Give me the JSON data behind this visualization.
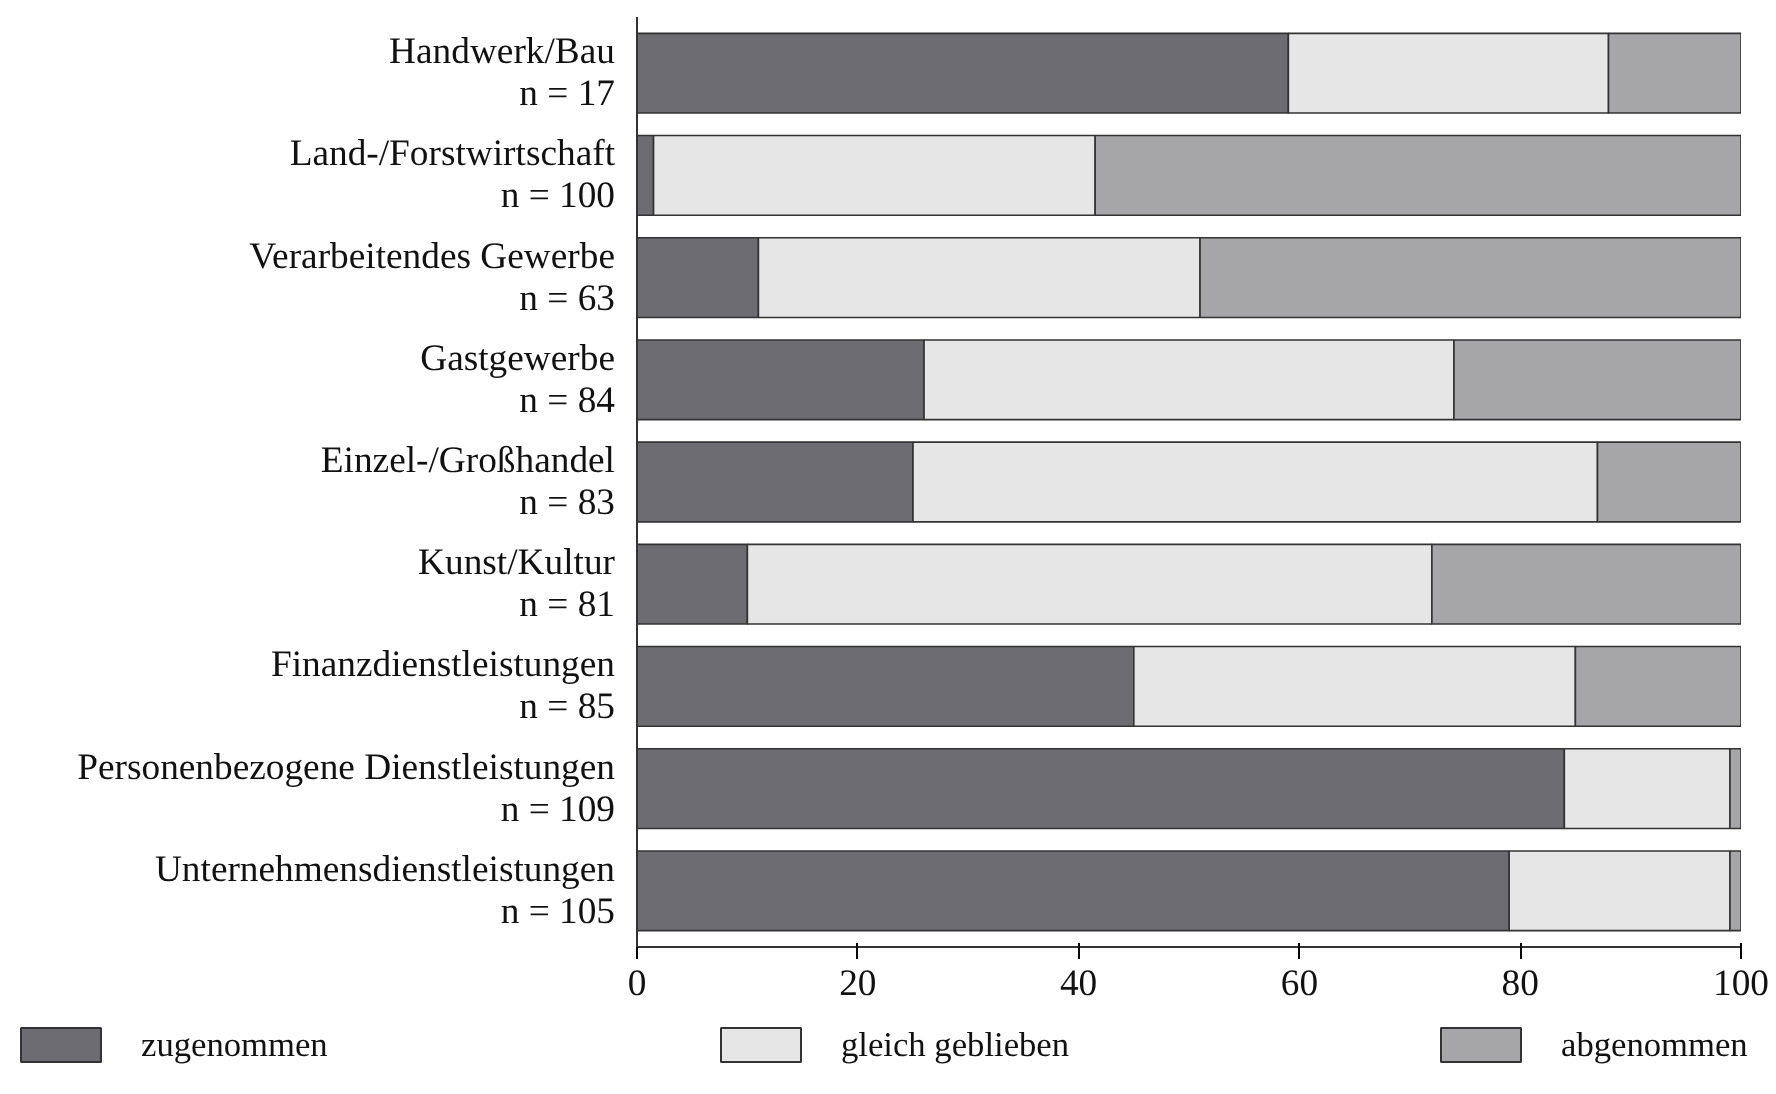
{
  "chart_data": {
    "type": "bar",
    "orientation": "horizontal",
    "stacked": true,
    "categories": [
      "Handwerk/Bau\nn = 17",
      "Land-/Forstwirtschaft\nn = 100",
      "Verarbeitendes Gewerbe\nn = 63",
      "Gastgewerbe\nn = 84",
      "Einzel-/Großhandel\nn = 83",
      "Kunst/Kultur\nn = 81",
      "Finanzdienstleistungen\nn = 85",
      "Personenbezogene Dienstleistungen\nn = 109",
      "Unternehmensdienstleistungen\nn = 105"
    ],
    "series": [
      {
        "name": "zugenommen",
        "color": "#6d6d71",
        "values": [
          59,
          1.5,
          11,
          26,
          25,
          10,
          45,
          84,
          79
        ]
      },
      {
        "name": "gleich geblieben",
        "color": "#e6e6e6",
        "values": [
          29,
          40,
          40,
          48,
          62,
          62,
          40,
          15,
          20
        ]
      },
      {
        "name": "abgenommen",
        "color": "#a6a6a9",
        "values": [
          12,
          58.5,
          49,
          26,
          13,
          28,
          15,
          1,
          1
        ]
      }
    ],
    "xlim": [
      0,
      100
    ],
    "xticks": [
      0,
      20,
      40,
      60,
      80,
      100
    ],
    "grid": false,
    "legend": "bottom"
  }
}
